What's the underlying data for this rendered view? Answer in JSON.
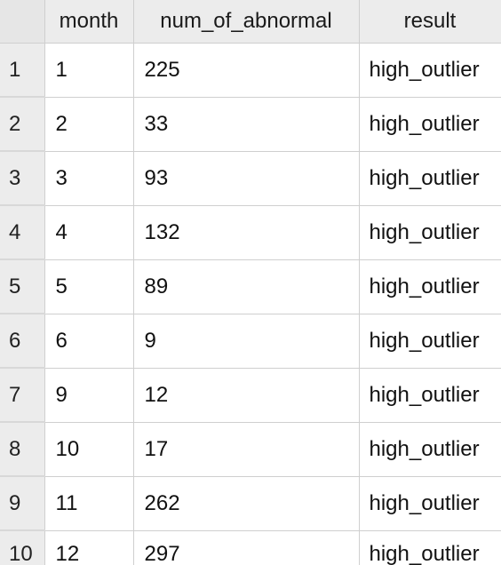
{
  "table": {
    "columns": [
      "",
      "month",
      "num_of_abnormal",
      "result"
    ],
    "rows": [
      {
        "index": "1",
        "month": "1",
        "num_of_abnormal": "225",
        "result": "high_outlier"
      },
      {
        "index": "2",
        "month": "2",
        "num_of_abnormal": "33",
        "result": "high_outlier"
      },
      {
        "index": "3",
        "month": "3",
        "num_of_abnormal": "93",
        "result": "high_outlier"
      },
      {
        "index": "4",
        "month": "4",
        "num_of_abnormal": "132",
        "result": "high_outlier"
      },
      {
        "index": "5",
        "month": "5",
        "num_of_abnormal": "89",
        "result": "high_outlier"
      },
      {
        "index": "6",
        "month": "6",
        "num_of_abnormal": "9",
        "result": "high_outlier"
      },
      {
        "index": "7",
        "month": "9",
        "num_of_abnormal": "12",
        "result": "high_outlier"
      },
      {
        "index": "8",
        "month": "10",
        "num_of_abnormal": "17",
        "result": "high_outlier"
      },
      {
        "index": "9",
        "month": "11",
        "num_of_abnormal": "262",
        "result": "high_outlier"
      },
      {
        "index": "10",
        "month": "12",
        "num_of_abnormal": "297",
        "result": "high_outlier"
      }
    ]
  },
  "colors": {
    "header_bg": "#ececec",
    "gridline": "#cfcfcf",
    "cell_bg": "#ffffff"
  }
}
